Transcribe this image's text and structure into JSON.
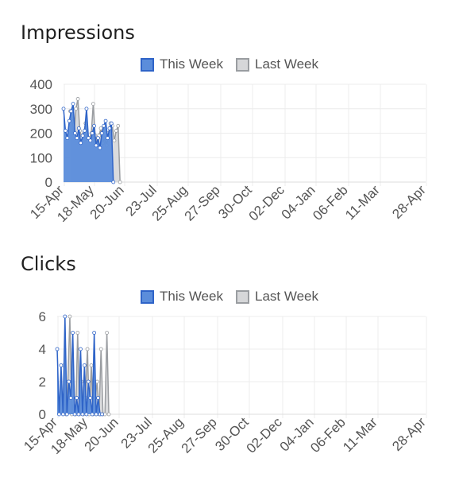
{
  "colors": {
    "this_week_fill": "#5b8ddb",
    "this_week_line": "#2f64c8",
    "last_week_fill": "#d6d7d9",
    "last_week_line": "#9a9da1",
    "grid": "#ececec"
  },
  "chart_data": [
    {
      "type": "area",
      "title": "Impressions",
      "legend_position": "top",
      "grid": true,
      "x_tick_labels": [
        "15-Apr",
        "18-May",
        "20-Jun",
        "23-Jul",
        "25-Aug",
        "27-Sep",
        "30-Oct",
        "02-Dec",
        "04-Jan",
        "06-Feb",
        "11-Mar",
        "28-Apr"
      ],
      "ylim": [
        0,
        400
      ],
      "y_ticks": [
        0,
        100,
        200,
        300,
        400
      ],
      "series": [
        {
          "name": "This Week",
          "x_start": "2024-04-15",
          "values": [
            300,
            210,
            180,
            250,
            290,
            320,
            200,
            180,
            220,
            160,
            190,
            210,
            300,
            180,
            170,
            200,
            230,
            150,
            180,
            140,
            200,
            230,
            250,
            180,
            220,
            240,
            0
          ]
        },
        {
          "name": "Last Week",
          "x_start": "2024-04-22",
          "values": [
            290,
            250,
            200,
            300,
            340,
            210,
            180,
            200,
            240,
            170,
            180,
            200,
            320,
            190,
            160,
            190,
            220,
            160,
            180,
            150,
            200,
            240,
            230,
            170,
            210,
            230,
            0
          ]
        }
      ]
    },
    {
      "type": "area",
      "title": "Clicks",
      "legend_position": "top",
      "grid": true,
      "x_tick_labels": [
        "15-Apr",
        "18-May",
        "20-Jun",
        "23-Jul",
        "25-Aug",
        "27-Sep",
        "30-Oct",
        "02-Dec",
        "04-Jan",
        "06-Feb",
        "11-Mar",
        "28-Apr"
      ],
      "ylim": [
        0,
        6
      ],
      "y_ticks": [
        0,
        2,
        4,
        6
      ],
      "series": [
        {
          "name": "This Week",
          "x_start": "2024-04-15",
          "values": [
            4,
            0,
            3,
            0,
            6,
            0,
            2,
            1,
            5,
            0,
            1,
            0,
            4,
            0,
            3,
            0,
            2,
            1,
            0,
            5,
            0,
            1,
            0,
            0
          ]
        },
        {
          "name": "Last Week",
          "x_start": "2024-04-22",
          "values": [
            3,
            0,
            2,
            6,
            0,
            1,
            0,
            5,
            0,
            2,
            0,
            1,
            4,
            0,
            3,
            0,
            1,
            2,
            0,
            4,
            0,
            0,
            5,
            0
          ]
        }
      ]
    }
  ]
}
